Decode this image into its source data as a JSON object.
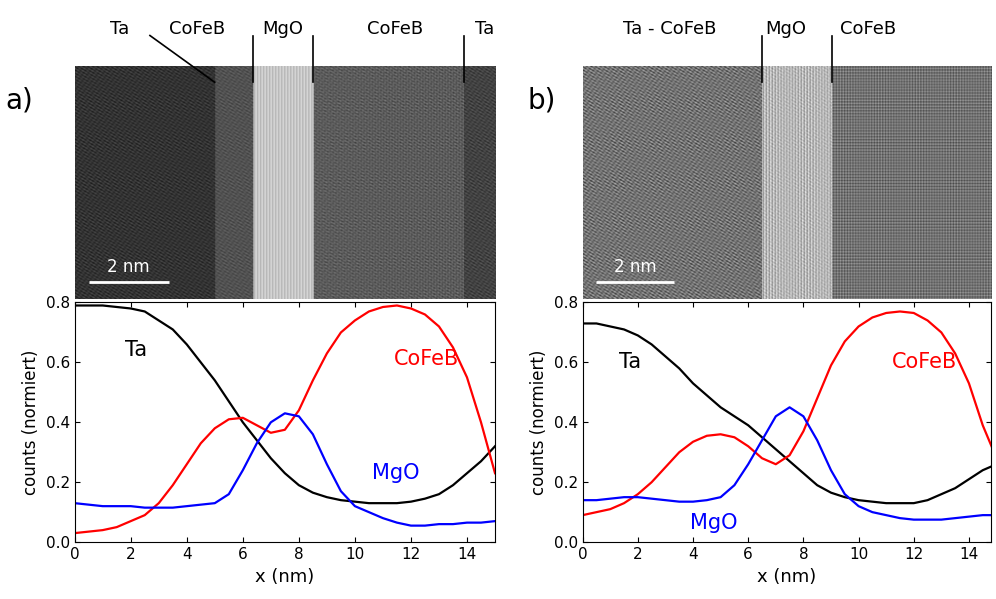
{
  "chart_data": [
    {
      "type": "line",
      "xlabel": "x (nm)",
      "ylabel": "counts (normiert)",
      "xlim": [
        0,
        15
      ],
      "ylim": [
        0,
        0.8
      ],
      "xticks": [
        0,
        2,
        4,
        6,
        8,
        10,
        12,
        14
      ],
      "yticks": [
        0.0,
        0.2,
        0.4,
        0.6,
        0.8
      ],
      "x": [
        0,
        0.5,
        1,
        1.5,
        2,
        2.5,
        3,
        3.5,
        4,
        4.5,
        5,
        5.5,
        6,
        6.5,
        7,
        7.5,
        8,
        8.5,
        9,
        9.5,
        10,
        10.5,
        11,
        11.5,
        12,
        12.5,
        13,
        13.5,
        14,
        14.5,
        15
      ],
      "series": [
        {
          "name": "Ta",
          "color": "#000000",
          "values": [
            0.79,
            0.79,
            0.79,
            0.785,
            0.78,
            0.77,
            0.74,
            0.71,
            0.66,
            0.6,
            0.54,
            0.47,
            0.4,
            0.34,
            0.28,
            0.23,
            0.19,
            0.165,
            0.15,
            0.14,
            0.135,
            0.13,
            0.13,
            0.13,
            0.135,
            0.145,
            0.16,
            0.19,
            0.23,
            0.27,
            0.32
          ]
        },
        {
          "name": "CoFeB",
          "color": "#ff0000",
          "values": [
            0.03,
            0.035,
            0.04,
            0.05,
            0.07,
            0.09,
            0.13,
            0.19,
            0.26,
            0.33,
            0.38,
            0.41,
            0.415,
            0.39,
            0.365,
            0.375,
            0.44,
            0.54,
            0.63,
            0.7,
            0.74,
            0.77,
            0.785,
            0.79,
            0.78,
            0.76,
            0.72,
            0.65,
            0.55,
            0.4,
            0.23
          ]
        },
        {
          "name": "MgO",
          "color": "#0000ff",
          "values": [
            0.13,
            0.125,
            0.12,
            0.12,
            0.12,
            0.115,
            0.115,
            0.115,
            0.12,
            0.125,
            0.13,
            0.16,
            0.24,
            0.33,
            0.4,
            0.43,
            0.42,
            0.36,
            0.26,
            0.17,
            0.12,
            0.1,
            0.08,
            0.065,
            0.055,
            0.055,
            0.06,
            0.06,
            0.065,
            0.065,
            0.07
          ]
        }
      ]
    },
    {
      "type": "line",
      "xlabel": "x (nm)",
      "ylabel": "counts (normiert)",
      "xlim": [
        0,
        14.8
      ],
      "ylim": [
        0,
        0.8
      ],
      "xticks": [
        0,
        2,
        4,
        6,
        8,
        10,
        12,
        14
      ],
      "yticks": [
        0.0,
        0.2,
        0.4,
        0.6,
        0.8
      ],
      "x": [
        0,
        0.5,
        1,
        1.5,
        2,
        2.5,
        3,
        3.5,
        4,
        4.5,
        5,
        5.5,
        6,
        6.5,
        7,
        7.5,
        8,
        8.5,
        9,
        9.5,
        10,
        10.5,
        11,
        11.5,
        12,
        12.5,
        13,
        13.5,
        14,
        14.5,
        15
      ],
      "series": [
        {
          "name": "Ta",
          "color": "#000000",
          "values": [
            0.73,
            0.73,
            0.72,
            0.71,
            0.69,
            0.66,
            0.62,
            0.58,
            0.53,
            0.49,
            0.45,
            0.42,
            0.39,
            0.35,
            0.31,
            0.27,
            0.23,
            0.19,
            0.165,
            0.15,
            0.14,
            0.135,
            0.13,
            0.13,
            0.13,
            0.14,
            0.16,
            0.18,
            0.21,
            0.24,
            0.26
          ]
        },
        {
          "name": "CoFeB",
          "color": "#ff0000",
          "values": [
            0.09,
            0.1,
            0.11,
            0.13,
            0.16,
            0.2,
            0.25,
            0.3,
            0.335,
            0.355,
            0.36,
            0.35,
            0.32,
            0.28,
            0.26,
            0.29,
            0.37,
            0.48,
            0.59,
            0.67,
            0.72,
            0.75,
            0.765,
            0.77,
            0.765,
            0.74,
            0.7,
            0.63,
            0.53,
            0.39,
            0.28
          ]
        },
        {
          "name": "MgO",
          "color": "#0000ff",
          "values": [
            0.14,
            0.14,
            0.145,
            0.15,
            0.15,
            0.145,
            0.14,
            0.135,
            0.135,
            0.14,
            0.15,
            0.19,
            0.26,
            0.34,
            0.42,
            0.45,
            0.42,
            0.34,
            0.24,
            0.16,
            0.12,
            0.1,
            0.09,
            0.08,
            0.075,
            0.075,
            0.075,
            0.08,
            0.085,
            0.09,
            0.09
          ]
        }
      ]
    }
  ],
  "images": [
    {
      "label": "a)",
      "layers": [
        "Ta",
        "CoFeB",
        "MgO",
        "CoFeB",
        "Ta"
      ],
      "scale_bar": {
        "label": "2 nm",
        "length": 2
      }
    },
    {
      "label": "b)",
      "layers": [
        "Ta - CoFeB",
        "MgO",
        "CoFeB"
      ],
      "scale_bar": {
        "label": "2 nm",
        "length": 2
      }
    }
  ]
}
